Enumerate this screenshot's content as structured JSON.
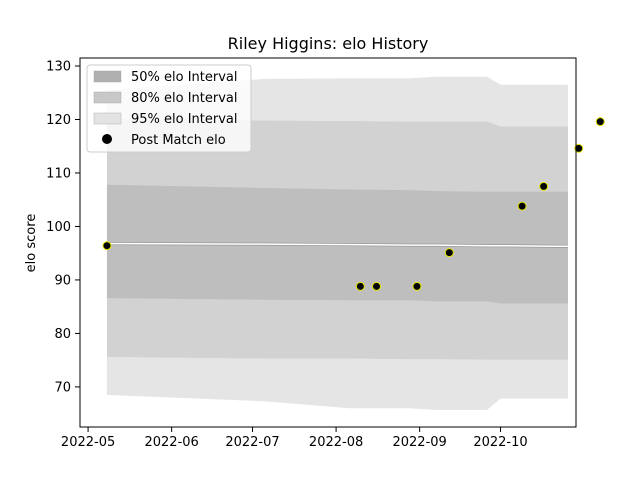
{
  "chart_data": {
    "type": "line",
    "title": "Riley Higgins: elo History",
    "xlabel": "",
    "ylabel": "elo score",
    "x_axis_type": "date",
    "xlim": [
      "2022-04-28",
      "2022-10-29"
    ],
    "ylim": [
      62.5,
      131.5
    ],
    "x_ticks": [
      "2022-05-01",
      "2022-06-01",
      "2022-07-01",
      "2022-08-01",
      "2022-09-01",
      "2022-10-01"
    ],
    "x_tick_labels": [
      "2022-05",
      "2022-06",
      "2022-07",
      "2022-08",
      "2022-09",
      "2022-10"
    ],
    "y_ticks": [
      70,
      80,
      90,
      100,
      110,
      120,
      130
    ],
    "grid": false,
    "legend_position": "top-left",
    "legend": [
      {
        "label": "50% elo Interval",
        "kind": "band",
        "color": "#b0b0b0"
      },
      {
        "label": "80% elo Interval",
        "kind": "band",
        "color": "#c8c8c8"
      },
      {
        "label": "95% elo Interval",
        "kind": "band",
        "color": "#e3e3e3"
      },
      {
        "label": "Post Match elo",
        "kind": "marker",
        "color": "#000000"
      }
    ],
    "colors": {
      "band_50": "#bebebe",
      "band_80": "#d2d2d2",
      "band_95": "#e5e5e5",
      "mean_line": "#ffffff",
      "mean_line_under": "#999999",
      "marker_fill": "#000000",
      "marker_edge": "#e6e600"
    },
    "bands": {
      "x": [
        "2022-05-08",
        "2022-07-06",
        "2022-08-06",
        "2022-08-28",
        "2022-09-07",
        "2022-09-26",
        "2022-10-01",
        "2022-10-20",
        "2022-10-26"
      ],
      "mean": [
        96.8,
        96.7,
        96.6,
        96.5,
        96.5,
        96.4,
        96.4,
        96.3,
        96.3
      ],
      "lo_95": [
        68.5,
        67.3,
        66.0,
        66.0,
        65.7,
        65.7,
        67.8,
        67.8,
        67.8
      ],
      "hi_95": [
        125.5,
        127.6,
        127.7,
        127.7,
        128.0,
        128.0,
        126.5,
        126.5,
        126.5
      ],
      "lo_80": [
        75.6,
        75.3,
        75.3,
        75.2,
        75.2,
        75.1,
        75.1,
        75.1,
        75.1
      ],
      "hi_80": [
        120.0,
        119.8,
        119.7,
        119.6,
        119.6,
        119.6,
        118.7,
        118.7,
        118.7
      ],
      "lo_50": [
        86.6,
        86.3,
        86.2,
        86.2,
        86.0,
        86.0,
        85.6,
        85.6,
        85.6
      ],
      "hi_50": [
        107.8,
        107.2,
        106.9,
        106.8,
        106.6,
        106.5,
        106.5,
        106.5,
        106.5
      ]
    },
    "series": [
      {
        "name": "Post Match elo",
        "x": [
          "2022-05-08",
          "2022-08-10",
          "2022-08-16",
          "2022-08-31",
          "2022-09-12",
          "2022-10-09",
          "2022-10-17",
          "2022-10-30",
          "2022-11-07"
        ],
        "y": [
          96.4,
          88.8,
          88.8,
          88.8,
          95.1,
          103.8,
          107.5,
          114.6,
          119.6
        ]
      }
    ]
  }
}
